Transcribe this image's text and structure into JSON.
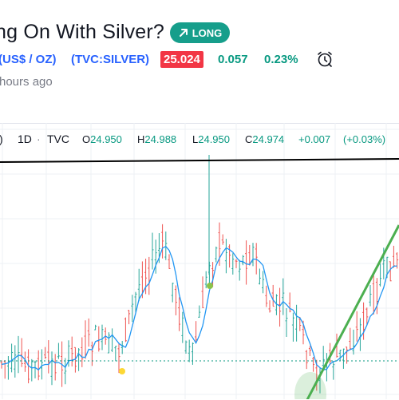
{
  "idea": {
    "title": "ng On With Silver?",
    "badge_label": "LONG",
    "badge_color": "#169e8b"
  },
  "symbol": {
    "name": "(US$ / OZ)",
    "ticker": "(TVC:SILVER)",
    "price": "25.024",
    "change": "0.057",
    "change_pct": "0.23%",
    "price_badge_color": "#f23645",
    "change_color": "#089981",
    "alarm_icon": "alarm-clock-icon"
  },
  "published": "hours ago",
  "legend": {
    "prefix": ")",
    "interval": "1D",
    "sep": "·",
    "source": "TVC",
    "o_label": "O",
    "o_value": "24.950",
    "h_label": "H",
    "h_value": "24.988",
    "l_label": "L",
    "l_value": "24.950",
    "c_label": "C",
    "c_value": "24.974",
    "change": "+0.007",
    "change_pct": "(+0.03%)"
  },
  "colors": {
    "up": "#26a69a",
    "down": "#ef5350",
    "ma": "#2196f3",
    "trendline": "#4caf50",
    "resistance": "#000000",
    "dotted": "#089981"
  }
}
